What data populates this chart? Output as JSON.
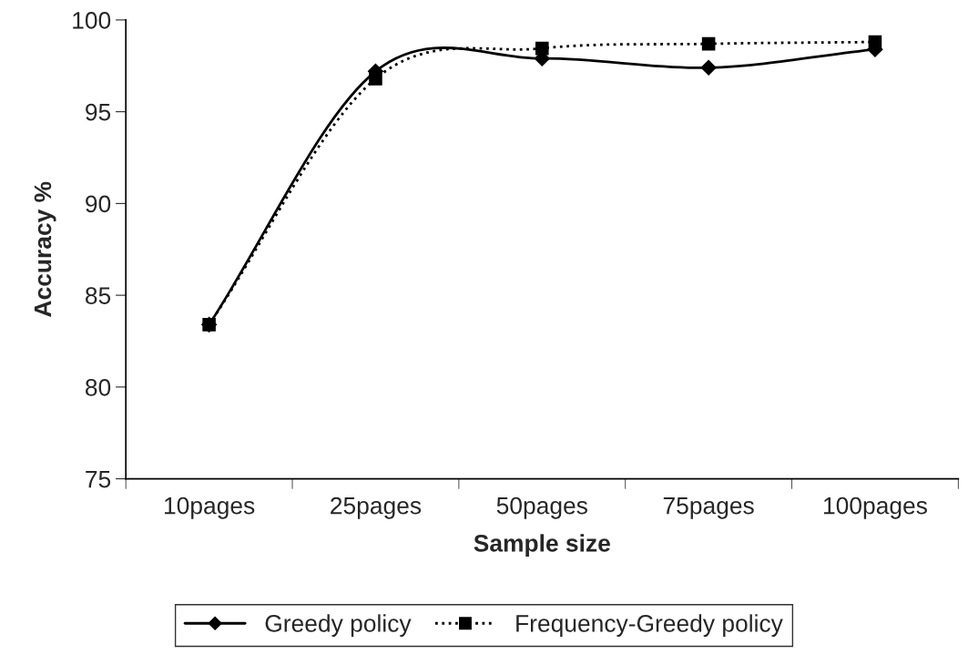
{
  "chart_data": {
    "type": "line",
    "xlabel": "Sample size",
    "ylabel": "Accuracy %",
    "categories": [
      "10pages",
      "25pages",
      "50pages",
      "75pages",
      "100pages"
    ],
    "series": [
      {
        "name": "Greedy policy",
        "color": "#000000",
        "values": [
          83.4,
          97.2,
          97.9,
          97.4,
          98.4
        ],
        "marker": "diamond",
        "line_style": "solid"
      },
      {
        "name": "Frequency-Greedy policy",
        "color": "#000000",
        "values": [
          83.4,
          96.8,
          98.45,
          98.7,
          98.8
        ],
        "marker": "square",
        "line_style": "dotted"
      }
    ],
    "ylim": [
      75,
      100
    ],
    "yticks": [
      75,
      80,
      85,
      90,
      95,
      100
    ],
    "grid": false,
    "legend": "bottom"
  }
}
